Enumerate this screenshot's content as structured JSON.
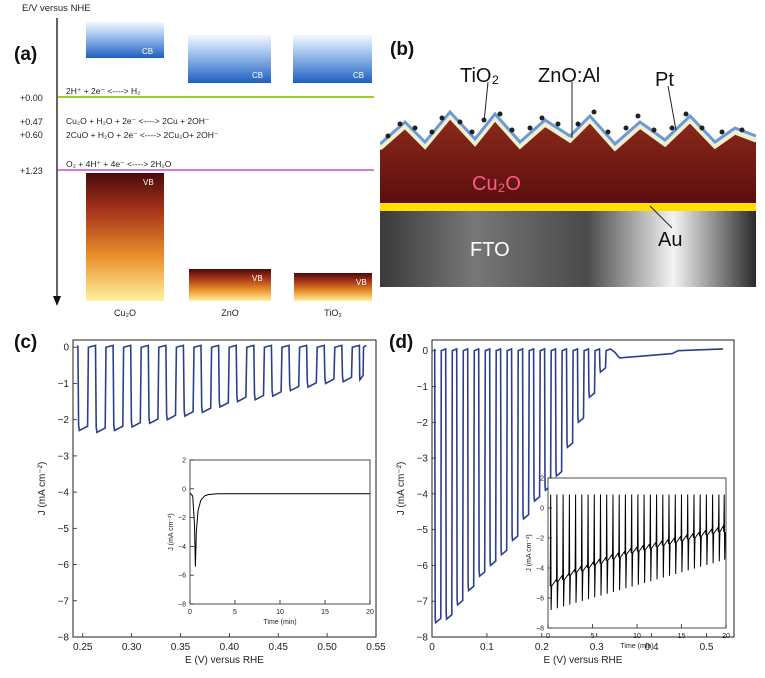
{
  "panels": {
    "a": {
      "label": "(a)",
      "yaxis_label": "E/V versus NHE",
      "levels": [
        {
          "label": "+0.00",
          "reaction": "2H⁺ + 2e⁻ <----> H₂",
          "color": "#9acd32"
        },
        {
          "label": "+0.47",
          "reaction": "Cu₂O + H₂O + 2e⁻ <----> 2Cu + 2OH⁻"
        },
        {
          "label": "+0.60",
          "reaction": "2CuO + H₂O + 2e⁻ <----> 2Cu₂O+ 2OH⁻"
        },
        {
          "label": "+1.23",
          "reaction": "O₂ + 4H⁺ + 4e⁻ <----> 2H₂O",
          "color": "#c050c0"
        }
      ],
      "materials": [
        {
          "name": "Cu₂O",
          "cb": "CB",
          "vb": "VB"
        },
        {
          "name": "ZnO",
          "cb": "CB",
          "vb": "VB"
        },
        {
          "name": "TiO₂",
          "cb": "CB",
          "vb": "VB"
        }
      ]
    },
    "b": {
      "label": "(b)",
      "layers": {
        "tio2": "TiO₂",
        "znoal": "ZnO:Al",
        "pt": "Pt",
        "cu2o": "Cu₂O",
        "au": "Au",
        "fto": "FTO"
      }
    },
    "c": {
      "label": "(c)"
    },
    "d": {
      "label": "(d)"
    }
  },
  "chart_data": [
    {
      "id": "c-main",
      "type": "line",
      "xlabel": "E (V) versus RHE",
      "ylabel": "J (mA cm⁻²)",
      "xlim": [
        0.24,
        0.55
      ],
      "ylim": [
        -8,
        0.2
      ],
      "xticks": [
        0.25,
        0.3,
        0.35,
        0.4,
        0.45,
        0.5,
        0.55
      ],
      "xtick_labels": [
        "0.25",
        "0.30",
        "0.35",
        "0.40",
        "0.45",
        "0.50",
        "0.55"
      ],
      "yticks": [
        0,
        -1,
        -2,
        -3,
        -4,
        -5,
        -6,
        -7,
        -8
      ],
      "ytick_labels": [
        "0",
        "−1",
        "−2",
        "−3",
        "−4",
        "−5",
        "−6",
        "−7",
        "−8"
      ],
      "color": "#2b3f8c",
      "chopped": {
        "x_start": 0.245,
        "x_end": 0.54,
        "dark_current": 0.05,
        "pulse_x": [
          0.245,
          0.263,
          0.281,
          0.299,
          0.317,
          0.335,
          0.353,
          0.371,
          0.389,
          0.407,
          0.425,
          0.443,
          0.461,
          0.479,
          0.497,
          0.515,
          0.533
        ],
        "light_current": [
          -2.3,
          -2.35,
          -2.3,
          -2.2,
          -2.1,
          -2.0,
          -1.9,
          -1.8,
          -1.65,
          -1.5,
          -1.45,
          -1.35,
          -1.2,
          -1.1,
          -1.0,
          -0.95,
          -0.9
        ]
      }
    },
    {
      "id": "c-inset",
      "type": "line",
      "xlabel": "Time (min)",
      "ylabel": "J (mA cm⁻²)",
      "xlim": [
        0,
        20
      ],
      "ylim": [
        -8,
        2
      ],
      "xticks": [
        0,
        5,
        10,
        15,
        20
      ],
      "xtick_labels": [
        "0",
        "5",
        "10",
        "15",
        "20"
      ],
      "yticks": [
        2,
        0,
        -2,
        -4,
        -6,
        -8
      ],
      "ytick_labels": [
        "2",
        "0",
        "−2",
        "−4",
        "−6",
        "−8"
      ],
      "color": "#000000",
      "x": [
        0,
        0.3,
        0.5,
        0.6,
        0.7,
        0.9,
        1.2,
        1.6,
        2.0,
        3,
        5,
        10,
        15,
        20
      ],
      "y": [
        -0.3,
        -0.5,
        -2.5,
        -5.4,
        -3.0,
        -1.5,
        -0.8,
        -0.5,
        -0.4,
        -0.35,
        -0.35,
        -0.35,
        -0.35,
        -0.35
      ]
    },
    {
      "id": "d-main",
      "type": "line",
      "xlabel": "E (V) versus RHE",
      "ylabel": "J (mA cm⁻²)",
      "xlim": [
        0,
        0.55
      ],
      "ylim": [
        -8,
        0.3
      ],
      "xticks": [
        0,
        0.1,
        0.2,
        0.3,
        0.4,
        0.5
      ],
      "xtick_labels": [
        "0",
        "0.1",
        "0.2",
        "0.3",
        "0.4",
        "0.5"
      ],
      "yticks": [
        0,
        -1,
        -2,
        -3,
        -4,
        -5,
        -6,
        -7,
        -8
      ],
      "ytick_labels": [
        "0",
        "−1",
        "−2",
        "−3",
        "−4",
        "−5",
        "−6",
        "−7",
        "−8"
      ],
      "color": "#2b3f8c",
      "chopped": {
        "x_start": 0.005,
        "x_end": 0.53,
        "dark_current": 0.05,
        "pulse_x": [
          0.005,
          0.025,
          0.045,
          0.065,
          0.085,
          0.105,
          0.125,
          0.145,
          0.165,
          0.185,
          0.205,
          0.225,
          0.245,
          0.265,
          0.285,
          0.305,
          0.325
        ],
        "light_current": [
          -7.6,
          -7.5,
          -7.1,
          -6.7,
          -6.3,
          -6.0,
          -5.7,
          -5.3,
          -4.7,
          -4.2,
          -3.9,
          -3.5,
          -2.7,
          -2.0,
          -1.3,
          -0.6,
          -0.2
        ]
      }
    },
    {
      "id": "d-inset",
      "type": "line",
      "xlabel": "Time (min)",
      "ylabel": "J (mA cm⁻²)",
      "xlim": [
        0,
        20
      ],
      "ylim": [
        -8,
        2
      ],
      "xticks": [
        0,
        5,
        10,
        15,
        20
      ],
      "xtick_labels": [
        "0",
        "5",
        "10",
        "15",
        "20"
      ],
      "yticks": [
        2,
        0,
        -2,
        -4,
        -6,
        -8
      ],
      "ytick_labels": [
        "2",
        "0",
        "−2",
        "−4",
        "−6",
        "−8"
      ],
      "color": "#000000",
      "spikes": {
        "t": [
          0.3,
          1.0,
          1.7,
          2.4,
          3.1,
          3.8,
          4.5,
          5.2,
          5.9,
          6.6,
          7.3,
          8.0,
          8.7,
          9.4,
          10.1,
          10.8,
          11.5,
          12.2,
          12.9,
          13.6,
          14.3,
          15.0,
          15.7,
          16.4,
          17.1,
          17.8,
          18.5,
          19.2,
          19.8
        ],
        "baseline": [
          -5.2,
          -4.9,
          -4.8,
          -4.5,
          -4.3,
          -4.2,
          -4.0,
          -3.8,
          -3.7,
          -3.5,
          -3.4,
          -3.3,
          -3.1,
          -3.0,
          -2.9,
          -2.8,
          -2.7,
          -2.6,
          -2.5,
          -2.4,
          -2.3,
          -2.2,
          -2.1,
          -2.0,
          -1.9,
          -1.8,
          -1.7,
          -1.6,
          -1.6
        ],
        "peak": 0.9,
        "dip": -6.8
      }
    }
  ]
}
